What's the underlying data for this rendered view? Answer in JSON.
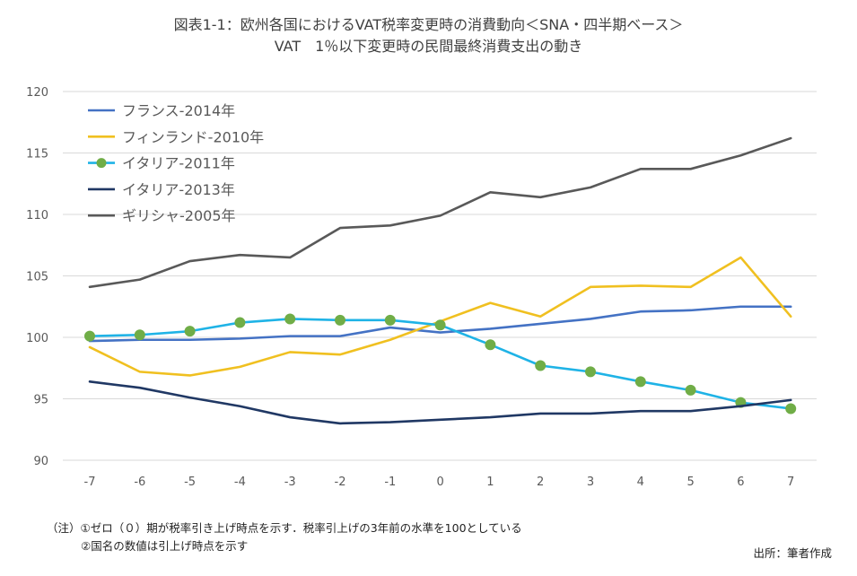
{
  "title_line1": "図表1-1：欧州各国におけるVAT税率変更時の消費動向＜SNA・四半期ベース＞",
  "title_line2": "VAT　1％以下変更時の民間最終消費支出の動き",
  "note_line1": "（注）①ゼロ（０）期が税率引き上げ時点を示す．税率引上げの3年前の水準を100としている",
  "note_line2": "②国名の数値は引上げ時点を示す",
  "source": "出所：筆者作成",
  "chart_data": {
    "type": "line",
    "x": [
      -7,
      -6,
      -5,
      -4,
      -3,
      -2,
      -1,
      0,
      1,
      2,
      3,
      4,
      5,
      6,
      7
    ],
    "ylim": [
      90,
      120
    ],
    "yticks": [
      90,
      95,
      100,
      105,
      110,
      115,
      120
    ],
    "grid": true,
    "legend_position": "top-left",
    "series": [
      {
        "name": "フランス-2014年",
        "color": "#4472c4",
        "marker": false,
        "values": [
          99.7,
          99.8,
          99.8,
          99.9,
          100.1,
          100.1,
          100.8,
          100.4,
          100.7,
          101.1,
          101.5,
          102.1,
          102.2,
          102.5,
          102.5
        ]
      },
      {
        "name": "フィンランド-2010年",
        "color": "#f0c020",
        "marker": false,
        "values": [
          99.2,
          97.2,
          96.9,
          97.6,
          98.8,
          98.6,
          99.8,
          101.3,
          102.8,
          101.7,
          104.1,
          104.2,
          104.1,
          106.5,
          101.7
        ]
      },
      {
        "name": "イタリア-2011年",
        "color": "#1fb3e6",
        "marker": true,
        "marker_color": "#70ad47",
        "values": [
          100.1,
          100.2,
          100.5,
          101.2,
          101.5,
          101.4,
          101.4,
          101.0,
          99.4,
          97.7,
          97.2,
          96.4,
          95.7,
          94.7,
          94.2
        ]
      },
      {
        "name": "イタリア-2013年",
        "color": "#203864",
        "marker": false,
        "values": [
          96.4,
          95.9,
          95.1,
          94.4,
          93.5,
          93.0,
          93.1,
          93.3,
          93.5,
          93.8,
          93.8,
          94.0,
          94.0,
          94.4,
          94.9
        ]
      },
      {
        "name": "ギリシャ-2005年",
        "color": "#595959",
        "marker": false,
        "values": [
          104.1,
          104.7,
          106.2,
          106.7,
          106.5,
          108.9,
          109.1,
          109.9,
          111.8,
          111.4,
          112.2,
          113.7,
          113.7,
          114.8,
          116.2
        ]
      }
    ]
  }
}
